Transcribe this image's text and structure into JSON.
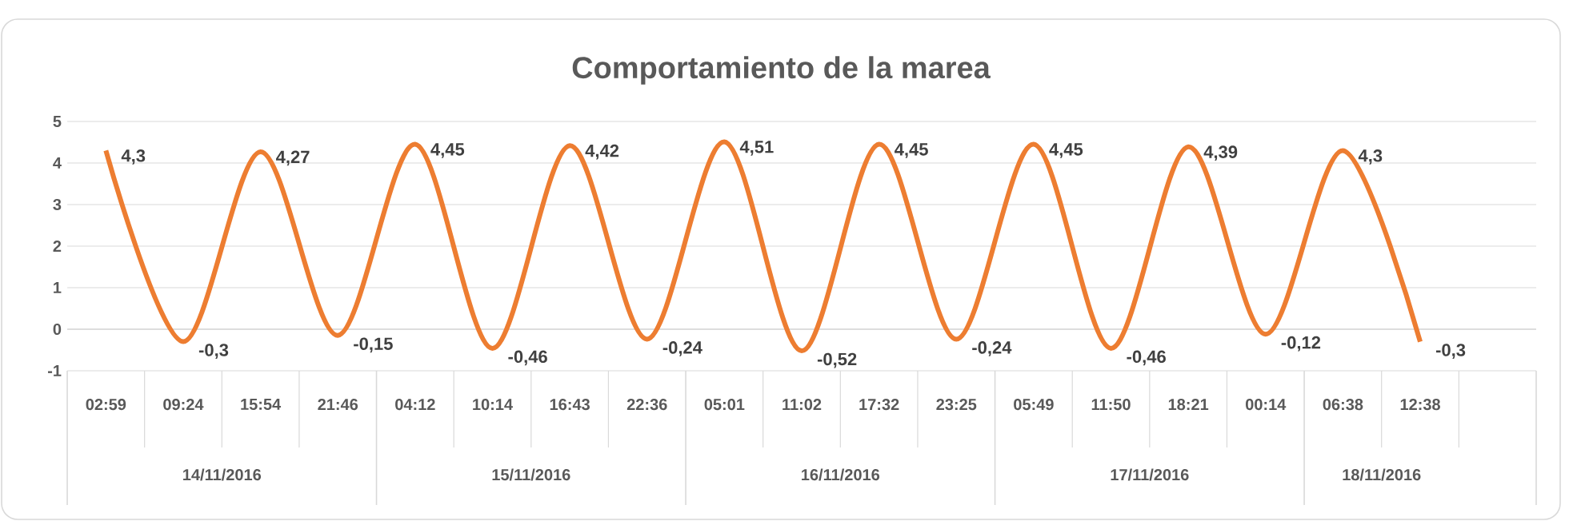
{
  "chart_data": {
    "type": "line",
    "title": "Comportamiento de la marea",
    "categories": [
      "02:59",
      "09:24",
      "15:54",
      "21:46",
      "04:12",
      "10:14",
      "16:43",
      "22:36",
      "05:01",
      "11:02",
      "17:32",
      "23:25",
      "05:49",
      "11:50",
      "18:21",
      "00:14",
      "06:38",
      "12:38",
      null
    ],
    "series": [
      {
        "color": "#ed7d31",
        "values": [
          4.3,
          -0.3,
          4.27,
          -0.15,
          4.45,
          -0.46,
          4.42,
          -0.24,
          4.51,
          -0.52,
          4.45,
          -0.24,
          4.45,
          -0.46,
          4.39,
          -0.12,
          4.3,
          -0.3,
          null
        ],
        "value_labels": [
          "4,3",
          "-0,3",
          "4,27",
          "-0,15",
          "4,45",
          "-0,46",
          "4,42",
          "-0,24",
          "4,51",
          "-0,52",
          "4,45",
          "-0,24",
          "4,45",
          "-0,46",
          "4,39",
          "-0,12",
          "4,3",
          "-0,3",
          null
        ]
      }
    ],
    "ylim": [
      -1,
      5
    ],
    "yticks": [
      -1,
      0,
      1,
      2,
      3,
      4,
      5
    ],
    "grid": "y",
    "marker": "none",
    "line_style": "solid",
    "annotations": [
      "14/11/2016",
      "15/11/2016",
      "16/11/2016",
      "17/11/2016",
      "18/11/2016"
    ]
  }
}
